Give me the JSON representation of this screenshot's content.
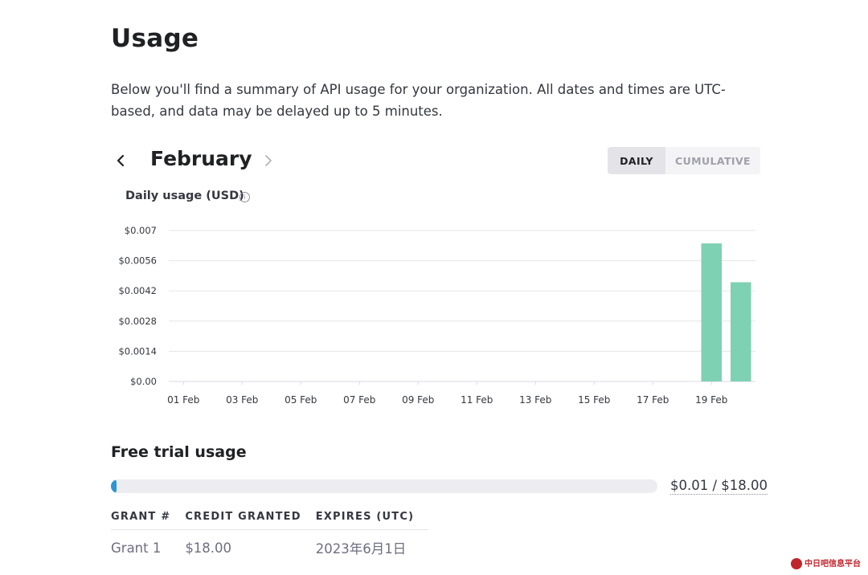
{
  "page": {
    "title": "Usage",
    "intro": "Below you'll find a summary of API usage for your organization. All dates and times are UTC-based, and data may be delayed up to 5 minutes."
  },
  "month_nav": {
    "month": "February",
    "prev_icon": "chevron-left-icon",
    "next_icon": "chevron-right-icon"
  },
  "view_toggle": {
    "daily_label": "DAILY",
    "cumulative_label": "CUMULATIVE",
    "selected": "DAILY"
  },
  "chart": {
    "title": "Daily usage (USD)",
    "info_icon": "info-icon"
  },
  "chart_data": {
    "type": "bar",
    "title": "Daily usage (USD)",
    "xlabel": "",
    "ylabel": "",
    "ylim": [
      0,
      0.007
    ],
    "yticks": [
      0,
      0.0014,
      0.0028,
      0.0042,
      0.0056,
      0.007
    ],
    "ytick_labels": [
      "$0.00",
      "$0.0014",
      "$0.0028",
      "$0.0042",
      "$0.0056",
      "$0.007"
    ],
    "xtick_labels": [
      "01 Feb",
      "03 Feb",
      "05 Feb",
      "07 Feb",
      "09 Feb",
      "11 Feb",
      "13 Feb",
      "15 Feb",
      "17 Feb",
      "19 Feb"
    ],
    "categories": [
      "01 Feb",
      "02 Feb",
      "03 Feb",
      "04 Feb",
      "05 Feb",
      "06 Feb",
      "07 Feb",
      "08 Feb",
      "09 Feb",
      "10 Feb",
      "11 Feb",
      "12 Feb",
      "13 Feb",
      "14 Feb",
      "15 Feb",
      "16 Feb",
      "17 Feb",
      "18 Feb",
      "19 Feb",
      "20 Feb"
    ],
    "values": [
      0,
      0,
      0,
      0,
      0,
      0,
      0,
      0,
      0,
      0,
      0,
      0,
      0,
      0,
      0,
      0,
      0,
      0,
      0.0064,
      0.0046
    ],
    "grid": true,
    "bar_color": "#7fd1b3"
  },
  "free_trial": {
    "title": "Free trial usage",
    "used_fraction": 0.000556,
    "summary": "$0.01 / $18.00",
    "bar_color": "#2e95d3"
  },
  "grants": {
    "headers": {
      "grant": "GRANT #",
      "credit": "CREDIT GRANTED",
      "expires": "EXPIRES (UTC)"
    },
    "rows": [
      {
        "grant": "Grant 1",
        "credit": "$18.00",
        "expires": "2023年6月1日"
      }
    ]
  },
  "watermark": {
    "text": "中日吧信息平台"
  }
}
